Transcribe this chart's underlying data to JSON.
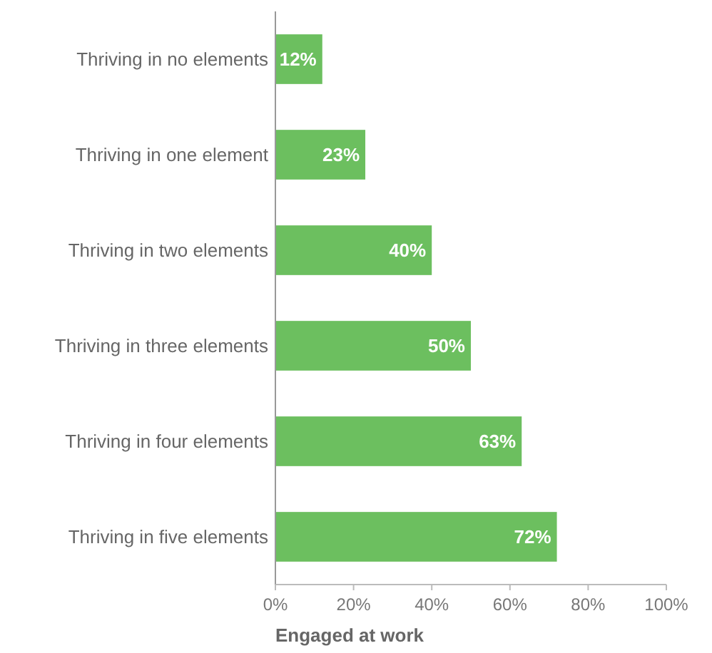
{
  "chart_data": {
    "type": "bar",
    "orientation": "horizontal",
    "xlabel": "Engaged at work",
    "categories": [
      "Thriving in no elements",
      "Thriving in one element",
      "Thriving in two elements",
      "Thriving in three elements",
      "Thriving in four elements",
      "Thriving in five elements"
    ],
    "values": [
      12,
      23,
      40,
      50,
      63,
      72
    ],
    "value_labels": [
      "12%",
      "23%",
      "40%",
      "50%",
      "63%",
      "72%"
    ],
    "color": "#6cbf5f",
    "xlim": [
      0,
      100
    ],
    "xticks": [
      {
        "value": 0,
        "label": "0%"
      },
      {
        "value": 20,
        "label": "20%"
      },
      {
        "value": 40,
        "label": "40%"
      },
      {
        "value": 60,
        "label": "60%"
      },
      {
        "value": 80,
        "label": "80%"
      },
      {
        "value": 100,
        "label": "100%"
      }
    ],
    "grid": false
  }
}
